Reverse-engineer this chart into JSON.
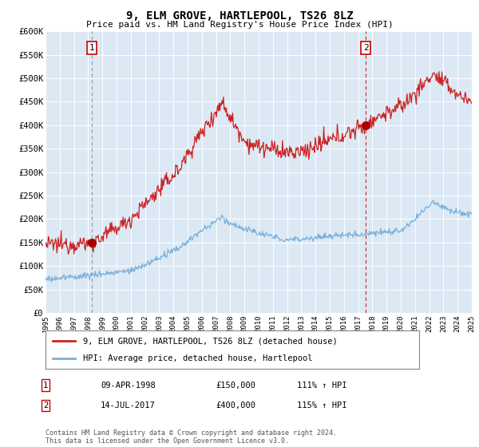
{
  "title": "9, ELM GROVE, HARTLEPOOL, TS26 8LZ",
  "subtitle": "Price paid vs. HM Land Registry's House Price Index (HPI)",
  "background_color": "#ffffff",
  "plot_bg_color": "#dce9f5",
  "ylim": [
    0,
    600000
  ],
  "yticks": [
    0,
    50000,
    100000,
    150000,
    200000,
    250000,
    300000,
    350000,
    400000,
    450000,
    500000,
    550000,
    600000
  ],
  "xstart_year": 1995,
  "xend_year": 2025,
  "legend_entries": [
    "9, ELM GROVE, HARTLEPOOL, TS26 8LZ (detached house)",
    "HPI: Average price, detached house, Hartlepool"
  ],
  "legend_colors": [
    "#cc0000",
    "#7aafda"
  ],
  "sale1_label": "1",
  "sale1_date": "09-APR-1998",
  "sale1_price": 150000,
  "sale1_hpi": "111% ↑ HPI",
  "sale1_x": 1998.27,
  "sale2_label": "2",
  "sale2_date": "14-JUL-2017",
  "sale2_price": 400000,
  "sale2_hpi": "115% ↑ HPI",
  "sale2_x": 2017.54,
  "footer": "Contains HM Land Registry data © Crown copyright and database right 2024.\nThis data is licensed under the Open Government Licence v3.0.",
  "red_line_color": "#cc2222",
  "blue_line_color": "#7aafda",
  "vline1_color": "#999999",
  "vline2_color": "#cc2222",
  "marker_color": "#aa0000"
}
